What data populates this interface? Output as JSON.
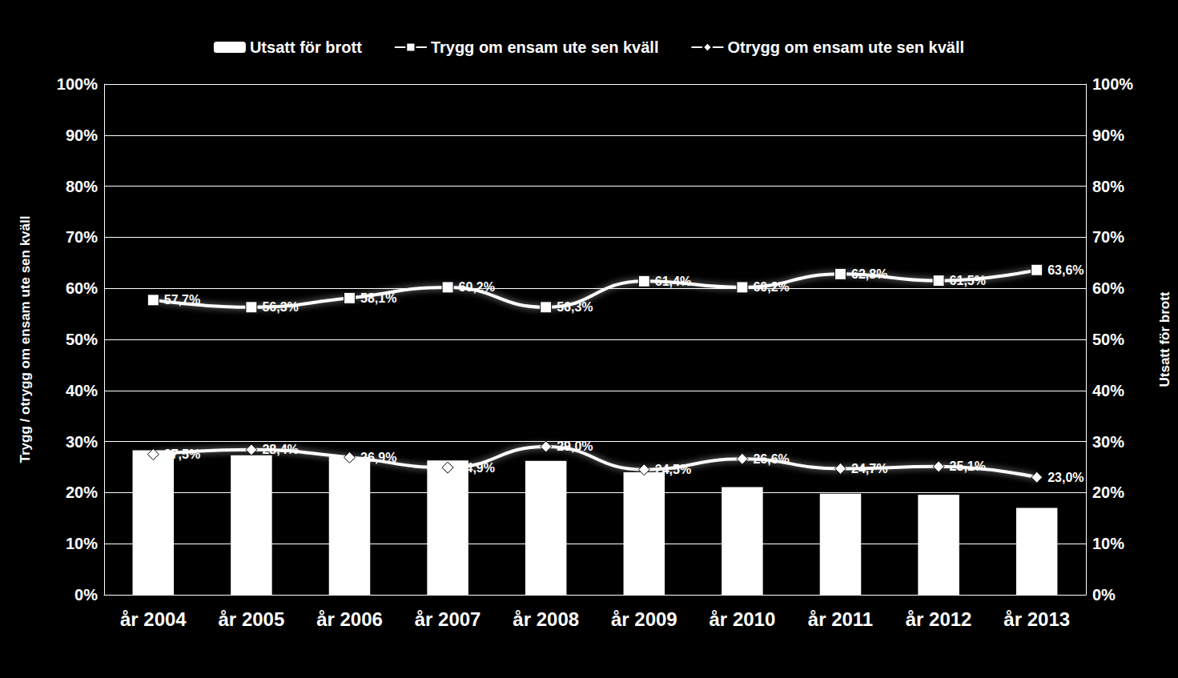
{
  "chart_data": {
    "type": "bar",
    "categories": [
      "år 2004",
      "år 2005",
      "år 2006",
      "år 2007",
      "år 2008",
      "år 2009",
      "år 2010",
      "år 2011",
      "år 2012",
      "år 2013"
    ],
    "y_label": "Trygg / otrygg om ensam ute sen kväll",
    "y2_label": "Utsatt för brott",
    "ylim": [
      0,
      100
    ],
    "yticks": [
      {
        "value": 0,
        "label": "0%"
      },
      {
        "value": 10,
        "label": "10%"
      },
      {
        "value": 20,
        "label": "20%"
      },
      {
        "value": 30,
        "label": "30%"
      },
      {
        "value": 40,
        "label": "40%"
      },
      {
        "value": 50,
        "label": "50%"
      },
      {
        "value": 60,
        "label": "60%"
      },
      {
        "value": 70,
        "label": "70%"
      },
      {
        "value": 80,
        "label": "80%"
      },
      {
        "value": 90,
        "label": "90%"
      },
      {
        "value": 100,
        "label": "100%"
      }
    ],
    "y2lim": [
      0,
      100
    ],
    "y2ticks": [
      {
        "value": 0,
        "label": "0%"
      },
      {
        "value": 10,
        "label": "10%"
      },
      {
        "value": 20,
        "label": "20%"
      },
      {
        "value": 30,
        "label": "30%"
      },
      {
        "value": 40,
        "label": "40%"
      },
      {
        "value": 50,
        "label": "50%"
      },
      {
        "value": 60,
        "label": "60%"
      },
      {
        "value": 70,
        "label": "70%"
      },
      {
        "value": 80,
        "label": "80%"
      },
      {
        "value": 90,
        "label": "90%"
      },
      {
        "value": 100,
        "label": "100%"
      }
    ],
    "grid": true,
    "legend": "top",
    "series": [
      {
        "name": "Utsatt för brott",
        "type": "bar",
        "axis": "y2",
        "color": "#ffffff",
        "data_labels": false,
        "values": [
          28.3,
          27.3,
          27.0,
          26.3,
          26.2,
          24.0,
          21.1,
          19.8,
          19.6,
          17.0
        ]
      },
      {
        "name": "Trygg om ensam ute sen kväll",
        "type": "line",
        "color": "#ffffff",
        "marker": "square",
        "line_style": "smooth",
        "data_labels": true,
        "values": [
          57.7,
          56.3,
          58.1,
          60.2,
          56.3,
          61.4,
          60.2,
          62.8,
          61.5,
          63.6
        ],
        "value_labels": [
          "57,7%",
          "56,3%",
          "58,1%",
          "60,2%",
          "56,3%",
          "61,4%",
          "60,2%",
          "62,8%",
          "61,5%",
          "63,6%"
        ]
      },
      {
        "name": "Otrygg om ensam ute sen kväll",
        "type": "line",
        "color": "#ffffff",
        "marker": "diamond",
        "line_style": "smooth",
        "data_labels": true,
        "values": [
          27.5,
          28.4,
          26.9,
          24.9,
          29.0,
          24.5,
          26.6,
          24.7,
          25.1,
          23.0
        ],
        "value_labels": [
          "27,5%",
          "28,4%",
          "26,9%",
          "24,9%",
          "29,0%",
          "24,5%",
          "26,6%",
          "24,7%",
          "25,1%",
          "23,0%"
        ]
      }
    ]
  }
}
